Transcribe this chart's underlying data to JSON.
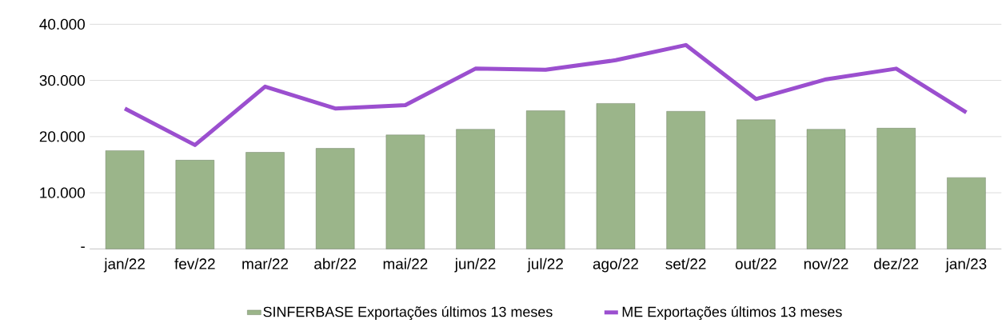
{
  "chart_data": {
    "type": "bar",
    "categories": [
      "jan/22",
      "fev/22",
      "mar/22",
      "abr/22",
      "mai/22",
      "jun/22",
      "jul/22",
      "ago/22",
      "set/22",
      "out/22",
      "nov/22",
      "dez/22",
      "jan/23"
    ],
    "series": [
      {
        "name": "SINFERBASE Exportações últimos 13 meses",
        "type": "bar",
        "color": "#9bb58a",
        "values": [
          17500,
          15800,
          17200,
          17900,
          20300,
          21300,
          24600,
          25900,
          24500,
          23000,
          21300,
          21500,
          12700
        ]
      },
      {
        "name": "ME Exportações últimos 13 meses",
        "type": "line",
        "color": "#9b4fcf",
        "values": [
          25000,
          18500,
          28900,
          25000,
          25600,
          32100,
          31900,
          33600,
          36300,
          26700,
          30200,
          32100,
          24300
        ]
      }
    ],
    "ylim": [
      0,
      40000
    ],
    "yticks": [
      {
        "value": 0,
        "label": "-"
      },
      {
        "value": 10000,
        "label": "10.000"
      },
      {
        "value": 20000,
        "label": "20.000"
      },
      {
        "value": 30000,
        "label": "30.000"
      },
      {
        "value": 40000,
        "label": "40.000"
      }
    ],
    "grid": "y",
    "legend": "bottom",
    "marker": "none",
    "line_style": "solid"
  }
}
